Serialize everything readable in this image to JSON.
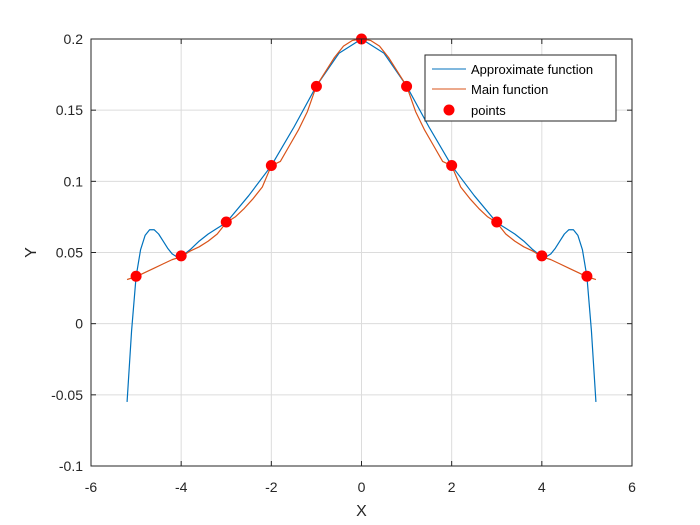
{
  "chart_data": {
    "type": "line",
    "title": "",
    "xlabel": "X",
    "ylabel": "Y",
    "xlim": [
      -6,
      6
    ],
    "ylim": [
      -0.1,
      0.2
    ],
    "xticks": [
      -6,
      -4,
      -2,
      0,
      2,
      4,
      6
    ],
    "xtick_labels": [
      "-6",
      "-4",
      "-2",
      "0",
      "2",
      "4",
      "6"
    ],
    "yticks": [
      -0.1,
      -0.05,
      0,
      0.05,
      0.1,
      0.15,
      0.2
    ],
    "ytick_labels": [
      "-0.1",
      "-0.05",
      "0",
      "0.05",
      "0.1",
      "0.15",
      "0.2"
    ],
    "grid": true,
    "legend_position": "top-right",
    "series": [
      {
        "name": "Approximate function",
        "kind": "line",
        "color": "#0072BD",
        "x": [
          -5.2,
          -5.1,
          -5.0,
          -4.9,
          -4.8,
          -4.7,
          -4.6,
          -4.5,
          -4.4,
          -4.3,
          -4.2,
          -4.1,
          -4.0,
          -3.8,
          -3.6,
          -3.4,
          -3.2,
          -3.0,
          -2.5,
          -2.0,
          -1.5,
          -1.0,
          -0.5,
          0,
          0.5,
          1.0,
          1.5,
          2.0,
          2.5,
          3.0,
          3.2,
          3.4,
          3.6,
          3.8,
          4.0,
          4.1,
          4.2,
          4.3,
          4.4,
          4.5,
          4.6,
          4.7,
          4.8,
          4.9,
          5.0,
          5.1,
          5.2
        ],
        "y": [
          -0.055,
          -0.005,
          0.033,
          0.052,
          0.062,
          0.066,
          0.066,
          0.063,
          0.058,
          0.053,
          0.049,
          0.047,
          0.047,
          0.052,
          0.058,
          0.063,
          0.067,
          0.071,
          0.09,
          0.111,
          0.138,
          0.167,
          0.19,
          0.2,
          0.19,
          0.167,
          0.138,
          0.111,
          0.09,
          0.071,
          0.067,
          0.063,
          0.058,
          0.052,
          0.047,
          0.047,
          0.049,
          0.053,
          0.058,
          0.063,
          0.066,
          0.066,
          0.062,
          0.052,
          0.033,
          -0.005,
          -0.055
        ]
      },
      {
        "name": "Main function",
        "kind": "line",
        "color": "#D95319",
        "x": [
          -5.2,
          -5.0,
          -4.8,
          -4.6,
          -4.4,
          -4.2,
          -4.0,
          -3.8,
          -3.6,
          -3.4,
          -3.2,
          -3.0,
          -2.8,
          -2.6,
          -2.4,
          -2.2,
          -2.0,
          -1.8,
          -1.6,
          -1.4,
          -1.2,
          -1.0,
          -0.8,
          -0.6,
          -0.4,
          -0.2,
          0,
          0.2,
          0.4,
          0.6,
          0.8,
          1.0,
          1.2,
          1.4,
          1.6,
          1.8,
          2.0,
          2.2,
          2.4,
          2.6,
          2.8,
          3.0,
          3.2,
          3.4,
          3.6,
          3.8,
          4.0,
          4.2,
          4.4,
          4.6,
          4.8,
          5.0,
          5.2
        ],
        "y": [
          0.031,
          0.033,
          0.036,
          0.039,
          0.042,
          0.045,
          0.047,
          0.051,
          0.054,
          0.058,
          0.063,
          0.071,
          0.075,
          0.081,
          0.088,
          0.096,
          0.111,
          0.114,
          0.125,
          0.136,
          0.149,
          0.167,
          0.177,
          0.187,
          0.195,
          0.199,
          0.2,
          0.199,
          0.195,
          0.187,
          0.177,
          0.167,
          0.149,
          0.136,
          0.125,
          0.114,
          0.111,
          0.096,
          0.088,
          0.081,
          0.075,
          0.071,
          0.063,
          0.058,
          0.054,
          0.051,
          0.047,
          0.045,
          0.042,
          0.039,
          0.036,
          0.033,
          0.031
        ]
      },
      {
        "name": "points",
        "kind": "scatter",
        "color": "#FF0000",
        "x": [
          -5,
          -4,
          -3,
          -2,
          -1,
          0,
          1,
          2,
          3,
          4,
          5
        ],
        "y": [
          0.0333,
          0.0476,
          0.0714,
          0.1111,
          0.1667,
          0.2,
          0.1667,
          0.1111,
          0.0714,
          0.0476,
          0.0333
        ]
      }
    ]
  }
}
